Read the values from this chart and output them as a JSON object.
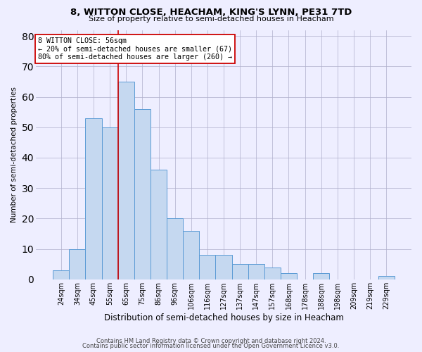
{
  "title_line1": "8, WITTON CLOSE, HEACHAM, KING'S LYNN, PE31 7TD",
  "title_line2": "Size of property relative to semi-detached houses in Heacham",
  "xlabel": "Distribution of semi-detached houses by size in Heacham",
  "ylabel": "Number of semi-detached properties",
  "footer_line1": "Contains HM Land Registry data © Crown copyright and database right 2024.",
  "footer_line2": "Contains public sector information licensed under the Open Government Licence v3.0.",
  "categories": [
    "24sqm",
    "34sqm",
    "45sqm",
    "55sqm",
    "65sqm",
    "75sqm",
    "86sqm",
    "96sqm",
    "106sqm",
    "116sqm",
    "127sqm",
    "137sqm",
    "147sqm",
    "157sqm",
    "168sqm",
    "178sqm",
    "188sqm",
    "198sqm",
    "209sqm",
    "219sqm",
    "229sqm"
  ],
  "values": [
    3,
    10,
    53,
    50,
    65,
    56,
    36,
    20,
    16,
    8,
    8,
    5,
    5,
    4,
    2,
    0,
    2,
    0,
    0,
    0,
    1
  ],
  "bar_color": "#c5d8f0",
  "bar_edge_color": "#5b9bd5",
  "annotation_line1": "8 WITTON CLOSE: 56sqm",
  "annotation_line2": "← 20% of semi-detached houses are smaller (67)",
  "annotation_line3": "80% of semi-detached houses are larger (260) →",
  "vline_color": "#cc0000",
  "vline_x": 3.5,
  "box_color": "#ffffff",
  "box_edge_color": "#cc0000",
  "ylim": [
    0,
    82
  ],
  "yticks": [
    0,
    10,
    20,
    30,
    40,
    50,
    60,
    70,
    80
  ],
  "grid_color": "#b0b0cc",
  "background_color": "#eeeeff",
  "title1_fontsize": 9.5,
  "title2_fontsize": 8.0,
  "xlabel_fontsize": 8.5,
  "ylabel_fontsize": 7.5,
  "tick_fontsize": 7.0,
  "footer_fontsize": 6.0
}
